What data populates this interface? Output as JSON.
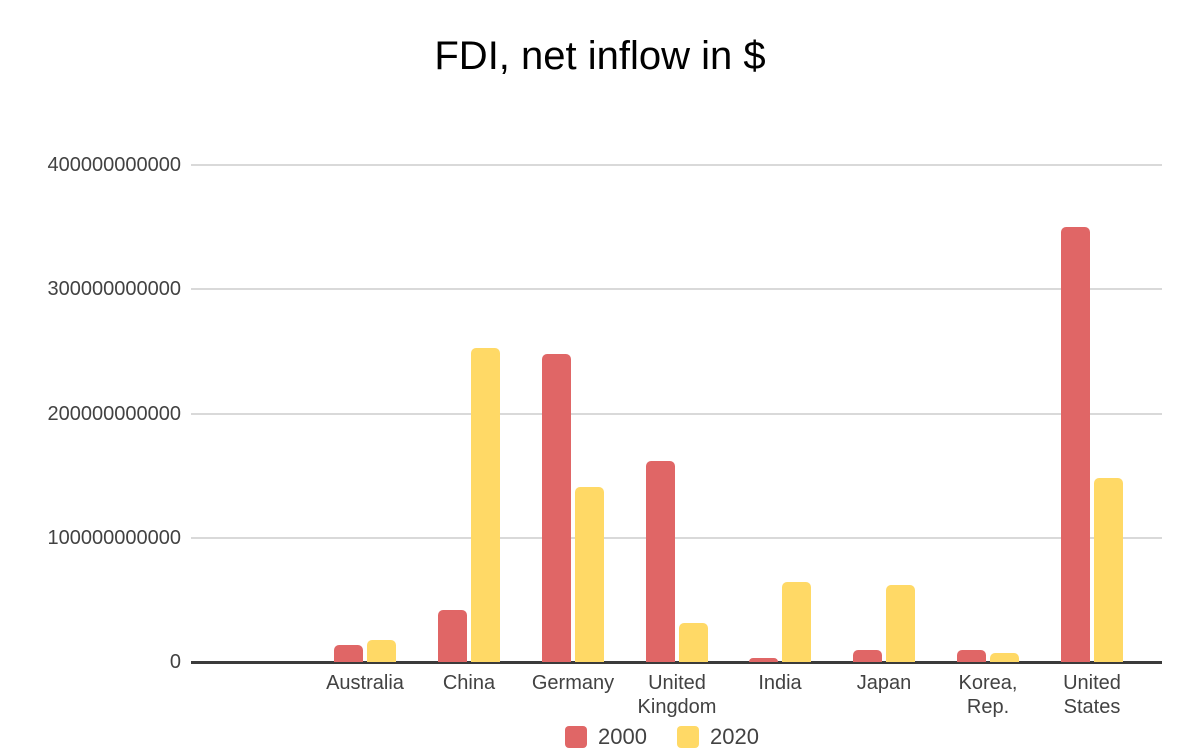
{
  "title": "FDI, net inflow in $",
  "colors": {
    "series_2000": "#E06666",
    "series_2020": "#FFD966",
    "gridline": "#D9D9D9",
    "axis_line": "#3B3B3B",
    "label_text": "#424242",
    "title_text": "#000000",
    "background": "#FFFFFF"
  },
  "legend": {
    "position": "bottom",
    "items": [
      {
        "label": "2000",
        "color": "#E06666"
      },
      {
        "label": "2020",
        "color": "#FFD966"
      }
    ]
  },
  "chart_data": {
    "type": "bar",
    "title": "FDI, net inflow in $",
    "categories": [
      "Australia",
      "China",
      "Germany",
      "United Kingdom",
      "India",
      "Japan",
      "Korea, Rep.",
      "United States"
    ],
    "series": [
      {
        "name": "2000",
        "color": "#E06666",
        "values": [
          14000000000,
          42000000000,
          248000000000,
          162000000000,
          3600000000,
          10000000000,
          10000000000,
          350000000000
        ]
      },
      {
        "name": "2020",
        "color": "#FFD966",
        "values": [
          18000000000,
          253000000000,
          141000000000,
          31000000000,
          64000000000,
          62000000000,
          7000000000,
          148000000000
        ]
      }
    ],
    "xlabel": "",
    "ylabel": "",
    "ylim": [
      0,
      400000000000
    ],
    "ytick_step": 100000000000,
    "ytick_labels": [
      "0",
      "100000000000",
      "200000000000",
      "300000000000",
      "400000000000"
    ],
    "grid": true,
    "legend_position": "bottom"
  }
}
